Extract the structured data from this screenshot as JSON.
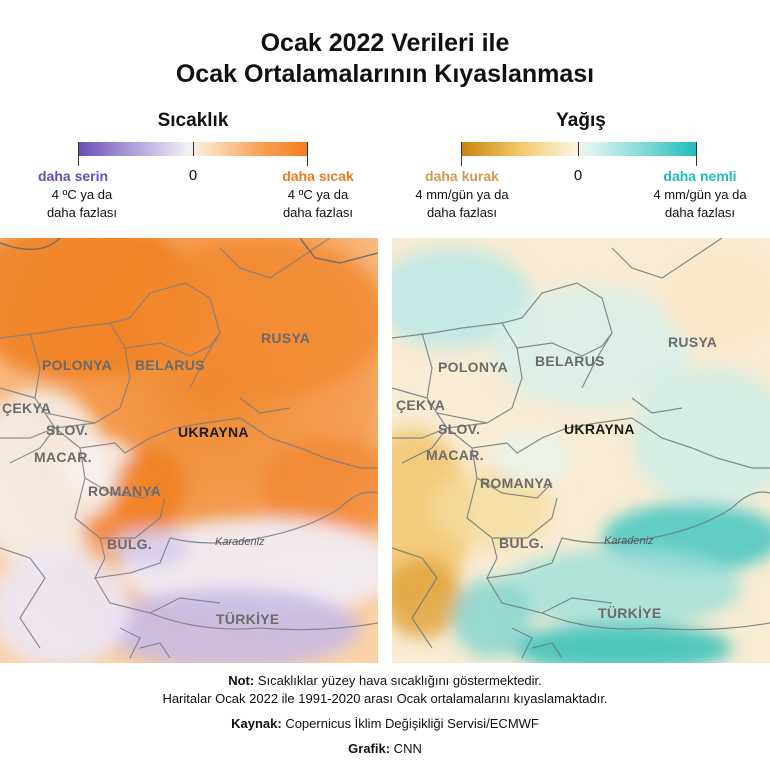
{
  "title_line1": "Ocak 2022 Verileri ile",
  "title_line2": "Ocak Ortalamalarının Kıyaslanması",
  "temp_legend": {
    "title": "Sıcaklık",
    "zero": "0",
    "left_label": "daha serin",
    "left_sub1": "4 ºC ya da",
    "left_sub2": "daha fazlası",
    "right_label": "daha sıcak",
    "right_sub1": "4 ºC ya da",
    "right_sub2": "daha fazlası",
    "color_cool": "#6a4cb8",
    "color_warm": "#f07d1e"
  },
  "precip_legend": {
    "title": "Yağış",
    "zero": "0",
    "left_label": "daha kurak",
    "left_sub1": "4 mm/gün ya da",
    "left_sub2": "daha fazlası",
    "right_label": "daha nemli",
    "right_sub1": "4 mm/gün ya da",
    "right_sub2": "daha fazlası",
    "color_dry": "#c9820f",
    "color_wet": "#1fbcbc"
  },
  "map_labels": {
    "rusya": "RUSYA",
    "polonya": "POLONYA",
    "belarus": "BELARUS",
    "cekya": "ÇEKYA",
    "slov": "SLOV.",
    "ukrayna": "UKRAYNA",
    "macar": "MACAR.",
    "romanya": "ROMANYA",
    "bulg": "BULG.",
    "karadeniz": "Karadeniz",
    "turkiye": "TÜRKİYE"
  },
  "notes": {
    "not_label": "Not:",
    "not_text": " Sıcaklıklar yüzey hava sıcaklığını göstermektedir.",
    "line2": "Haritalar Ocak 2022 ile 1991-2020 arası Ocak ortalamalarını kıyaslamaktadır.",
    "source_label": "Kaynak:",
    "source_text": " Copernicus İklim Değişikliği Servisi/ECMWF",
    "graphic_label": "Grafik:",
    "graphic_text": " CNN"
  }
}
